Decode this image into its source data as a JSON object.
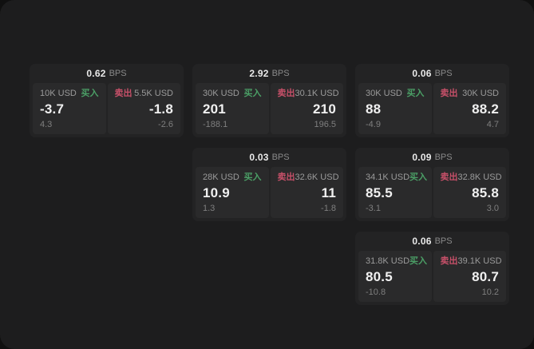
{
  "labels": {
    "bps_suffix": "BPS",
    "buy": "买入",
    "sell": "卖出"
  },
  "colors": {
    "backdrop": "#101010",
    "window_bg": "#1d1d1e",
    "card_bg": "#232324",
    "panel_bg": "#2a2a2b",
    "buy": "#4b9f66",
    "sell": "#c75069",
    "text_bright": "#f0f0f0",
    "text_dim": "#9b9b9b",
    "text_faint": "#7f7f7f"
  },
  "cards": [
    {
      "bps": "0.62",
      "buy": {
        "amount": "10K USD",
        "value": "-3.7",
        "sub": "4.3"
      },
      "sell": {
        "amount": "5.5K USD",
        "value": "-1.8",
        "sub": "-2.6"
      }
    },
    {
      "bps": "2.92",
      "buy": {
        "amount": "30K USD",
        "value": "201",
        "sub": "-188.1"
      },
      "sell": {
        "amount": "30.1K USD",
        "value": "210",
        "sub": "196.5"
      }
    },
    {
      "bps": "0.06",
      "buy": {
        "amount": "30K USD",
        "value": "88",
        "sub": "-4.9"
      },
      "sell": {
        "amount": "30K USD",
        "value": "88.2",
        "sub": "4.7"
      }
    },
    {
      "bps": "0.03",
      "buy": {
        "amount": "28K USD",
        "value": "10.9",
        "sub": "1.3"
      },
      "sell": {
        "amount": "32.6K USD",
        "value": "11",
        "sub": "-1.8"
      }
    },
    {
      "bps": "0.09",
      "buy": {
        "amount": "34.1K USD",
        "value": "85.5",
        "sub": "-3.1"
      },
      "sell": {
        "amount": "32.8K USD",
        "value": "85.8",
        "sub": "3.0"
      }
    },
    {
      "bps": "0.06",
      "buy": {
        "amount": "31.8K USD",
        "value": "80.5",
        "sub": "-10.8"
      },
      "sell": {
        "amount": "39.1K USD",
        "value": "80.7",
        "sub": "10.2"
      }
    }
  ]
}
